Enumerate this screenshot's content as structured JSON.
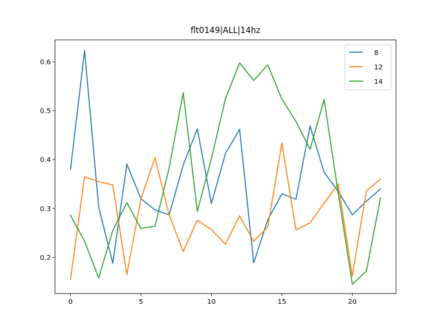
{
  "chart_data": {
    "type": "line",
    "title": "flt0149|ALL|14hz",
    "xlabel": "",
    "ylabel": "",
    "xlim": [
      -1.1,
      23.1
    ],
    "ylim": [
      0.126,
      0.645
    ],
    "xticks": [
      0,
      5,
      10,
      15,
      20
    ],
    "yticks": [
      0.2,
      0.3,
      0.4,
      0.5,
      0.6
    ],
    "ytick_labels": [
      "0.2",
      "0.3",
      "0.4",
      "0.5",
      "0.6"
    ],
    "grid": false,
    "legend_position": "top-right",
    "x": [
      0,
      1,
      2,
      3,
      4,
      5,
      6,
      7,
      8,
      9,
      10,
      11,
      12,
      13,
      14,
      15,
      16,
      17,
      18,
      19,
      20,
      21,
      22
    ],
    "series": [
      {
        "name": "8",
        "color": "#1f77b4",
        "values": [
          0.38,
          0.623,
          0.303,
          0.188,
          0.391,
          0.32,
          0.297,
          0.287,
          0.389,
          0.463,
          0.31,
          0.413,
          0.462,
          0.189,
          0.277,
          0.33,
          0.319,
          0.469,
          0.374,
          0.335,
          0.287,
          0.315,
          0.34
        ]
      },
      {
        "name": "12",
        "color": "#ff7f0e",
        "values": [
          0.155,
          0.365,
          0.355,
          0.348,
          0.165,
          0.32,
          0.404,
          0.287,
          0.212,
          0.276,
          0.257,
          0.227,
          0.285,
          0.233,
          0.262,
          0.434,
          0.256,
          0.271,
          0.311,
          0.35,
          0.162,
          0.336,
          0.36
        ]
      },
      {
        "name": "14",
        "color": "#2ca02c",
        "values": [
          0.286,
          0.233,
          0.158,
          0.255,
          0.312,
          0.259,
          0.264,
          0.383,
          0.537,
          0.294,
          0.402,
          0.525,
          0.598,
          0.562,
          0.594,
          0.524,
          0.478,
          0.421,
          0.523,
          0.331,
          0.145,
          0.172,
          0.322
        ]
      }
    ]
  }
}
